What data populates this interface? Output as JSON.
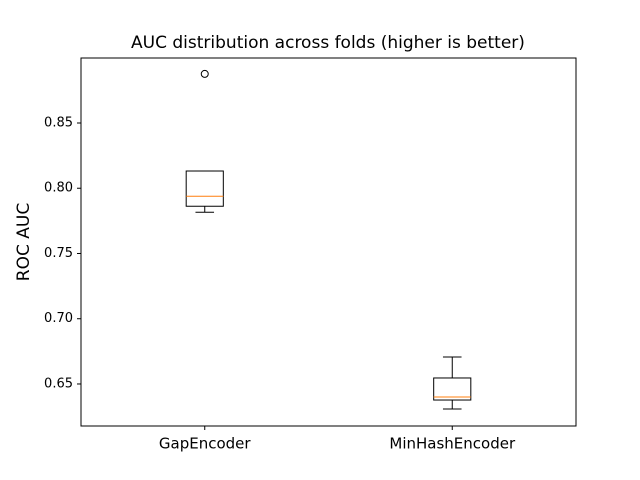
{
  "chart_data": {
    "type": "box",
    "title": "AUC distribution across folds (higher is better)",
    "ylabel": "ROC AUC",
    "categories": [
      "GapEncoder",
      "MinHashEncoder"
    ],
    "boxes": [
      {
        "whislo": 0.7816,
        "q1": 0.7862,
        "med": 0.7939,
        "q3": 0.8132,
        "whishi": 0.8132,
        "fliers": [
          0.8876
        ]
      },
      {
        "whislo": 0.6308,
        "q1": 0.6377,
        "med": 0.64,
        "q3": 0.6546,
        "whishi": 0.6707,
        "fliers": []
      }
    ],
    "box_color": "#000000",
    "median_color": "#ff7f0e",
    "ylim": [
      0.6178,
      0.8998
    ],
    "yticks": [
      0.65,
      {
        "value": 0.7,
        "label": "0.70"
      },
      0.75,
      {
        "value": 0.8,
        "label": "0.80"
      },
      0.85
    ]
  }
}
